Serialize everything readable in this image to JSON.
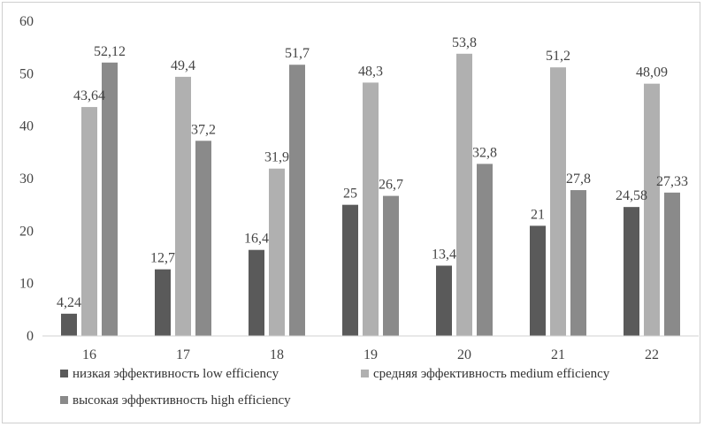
{
  "chart_data": {
    "type": "bar",
    "title": "",
    "xlabel": "",
    "ylabel": "",
    "ylim": [
      0,
      60
    ],
    "yticks": [
      0,
      10,
      20,
      30,
      40,
      50,
      60
    ],
    "grid": false,
    "legend_position": "bottom",
    "categories": [
      "16",
      "17",
      "18",
      "19",
      "20",
      "21",
      "22"
    ],
    "series": [
      {
        "name": "низкая эффективность low efficiency",
        "color": "#5a5a5a",
        "values": [
          4.24,
          12.7,
          16.4,
          25,
          13.4,
          21,
          24.58
        ],
        "labels": [
          "4,24",
          "12,7",
          "16,4",
          "25",
          "13,4",
          "21",
          "24,58"
        ]
      },
      {
        "name": "средняя эффективность medium efficiency",
        "color": "#b0b0b0",
        "values": [
          43.64,
          49.4,
          31.9,
          48.3,
          53.8,
          51.2,
          48.09
        ],
        "labels": [
          "43,64",
          "49,4",
          "31,9",
          "48,3",
          "53,8",
          "51,2",
          "48,09"
        ]
      },
      {
        "name": "высокая эффективность high efficiency",
        "color": "#8a8a8a",
        "values": [
          52.12,
          37.2,
          51.7,
          26.7,
          32.8,
          27.8,
          27.33
        ],
        "labels": [
          "52,12",
          "37,2",
          "51,7",
          "26,7",
          "32,8",
          "27,8",
          "27,33"
        ]
      }
    ]
  }
}
